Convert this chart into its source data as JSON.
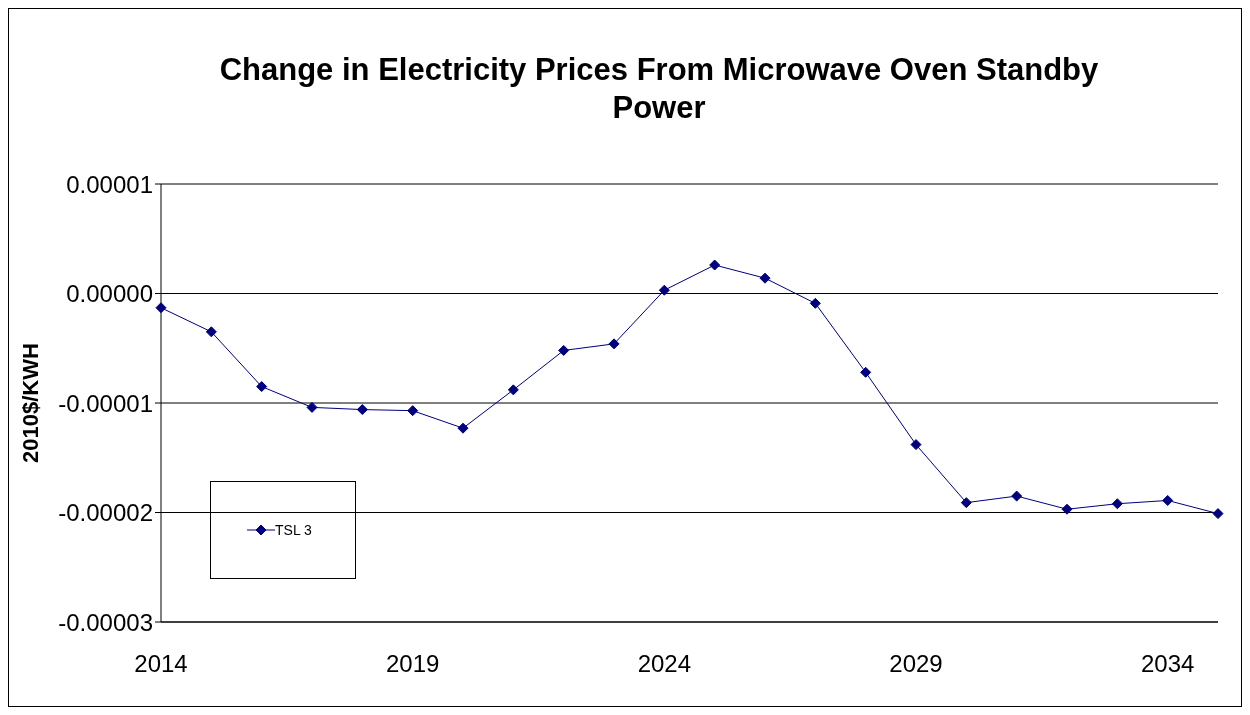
{
  "chart_data": {
    "type": "line",
    "title": "Change in Electricity Prices From Microwave Oven Standby Power",
    "ylabel": "2010$/KWH",
    "categories": [
      "2014",
      null,
      null,
      null,
      null,
      "2019",
      null,
      null,
      null,
      null,
      "2024",
      null,
      null,
      null,
      null,
      "2029",
      null,
      null,
      null,
      null,
      "2034",
      null
    ],
    "series": [
      {
        "name": "TSL 3",
        "color": "#000080",
        "values": [
          -1.3e-06,
          -3.5e-06,
          -8.5e-06,
          -1.04e-05,
          -1.06e-05,
          -1.07e-05,
          -1.23e-05,
          -8.8e-06,
          -5.2e-06,
          -4.6e-06,
          3e-07,
          2.6e-06,
          1.4e-06,
          -9e-07,
          -7.2e-06,
          -1.38e-05,
          -1.91e-05,
          -1.85e-05,
          -1.97e-05,
          -1.92e-05,
          -1.89e-05,
          -2.01e-05
        ]
      }
    ],
    "ylim": [
      -3e-05,
      1e-05
    ],
    "yticks": [
      {
        "value": -3e-05,
        "label": "-0.00003"
      },
      {
        "value": -2e-05,
        "label": "-0.00002"
      },
      {
        "value": -1e-05,
        "label": "-0.00001"
      },
      {
        "value": 0,
        "label": "0.00000"
      },
      {
        "value": 1e-05,
        "label": "0.00001"
      }
    ],
    "grid": "y",
    "legend": "bottom left",
    "marker": "diamond",
    "line_style": "solid"
  }
}
